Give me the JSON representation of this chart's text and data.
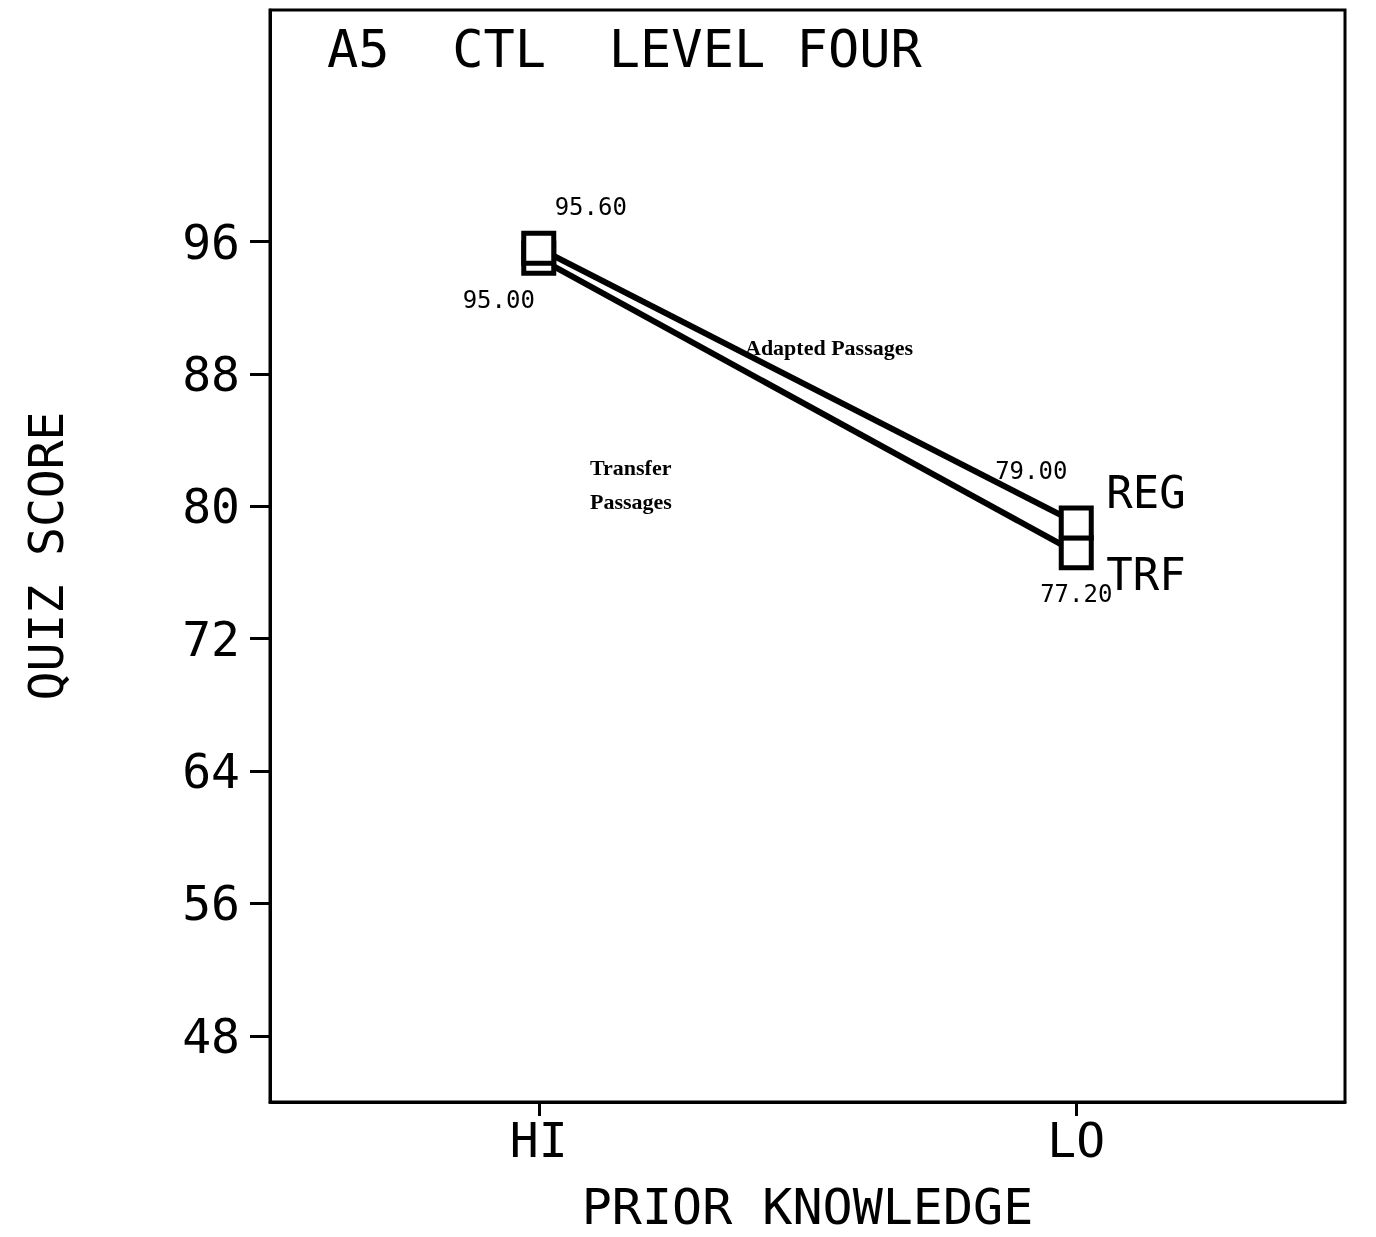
{
  "chart_data": {
    "type": "line",
    "title": "A5  CTL  LEVEL FOUR",
    "xlabel": "PRIOR KNOWLEDGE",
    "ylabel": "QUIZ SCORE",
    "categories": [
      "HI",
      "LO"
    ],
    "series": [
      {
        "name": "REG",
        "color": "#000000",
        "values": [
          95.6,
          79.0
        ],
        "value_labels": [
          "95.60",
          "79.00"
        ]
      },
      {
        "name": "TRF",
        "color": "#000000",
        "values": [
          95.0,
          77.2
        ],
        "value_labels": [
          "95.00",
          "77.20"
        ]
      }
    ],
    "ylim": [
      44,
      110
    ],
    "yticks": [
      48,
      56,
      64,
      72,
      80,
      88,
      96
    ],
    "annotations": [
      "Adapted Passages",
      "Transfer Passages"
    ],
    "marker": "square",
    "line_style": "solid",
    "grid": false,
    "legend": false
  }
}
